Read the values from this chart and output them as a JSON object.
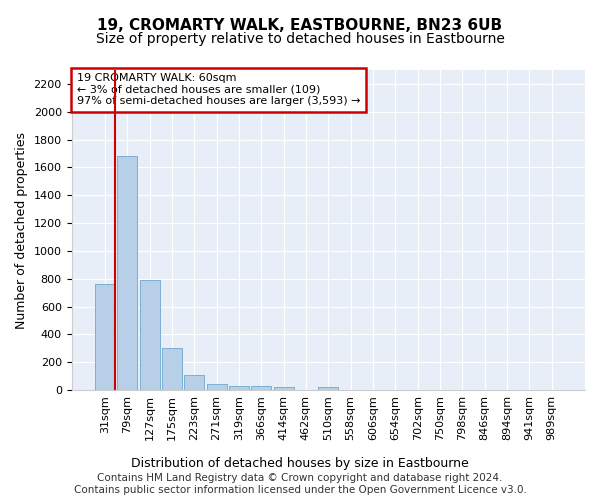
{
  "title": "19, CROMARTY WALK, EASTBOURNE, BN23 6UB",
  "subtitle": "Size of property relative to detached houses in Eastbourne",
  "xlabel": "Distribution of detached houses by size in Eastbourne",
  "ylabel": "Number of detached properties",
  "footer1": "Contains HM Land Registry data © Crown copyright and database right 2024.",
  "footer2": "Contains public sector information licensed under the Open Government Licence v3.0.",
  "annotation_line1": "19 CROMARTY WALK: 60sqm",
  "annotation_line2": "← 3% of detached houses are smaller (109)",
  "annotation_line3": "97% of semi-detached houses are larger (3,593) →",
  "bar_labels": [
    "31sqm",
    "79sqm",
    "127sqm",
    "175sqm",
    "223sqm",
    "271sqm",
    "319sqm",
    "366sqm",
    "414sqm",
    "462sqm",
    "510sqm",
    "558sqm",
    "606sqm",
    "654sqm",
    "702sqm",
    "750sqm",
    "798sqm",
    "846sqm",
    "894sqm",
    "941sqm",
    "989sqm"
  ],
  "bar_values": [
    760,
    1680,
    790,
    300,
    110,
    45,
    32,
    28,
    22,
    0,
    22,
    0,
    0,
    0,
    0,
    0,
    0,
    0,
    0,
    0,
    0
  ],
  "bar_color": "#b8cfe8",
  "bar_edge_color": "#7aafd4",
  "highlight_color": "#cc0000",
  "annotation_box_color": "#cc0000",
  "ylim": [
    0,
    2300
  ],
  "yticks": [
    0,
    200,
    400,
    600,
    800,
    1000,
    1200,
    1400,
    1600,
    1800,
    2000,
    2200
  ],
  "bg_color": "#e8eef7",
  "grid_color": "#ffffff",
  "title_fontsize": 11,
  "subtitle_fontsize": 10,
  "axis_label_fontsize": 9,
  "tick_fontsize": 8,
  "footer_fontsize": 7.5
}
